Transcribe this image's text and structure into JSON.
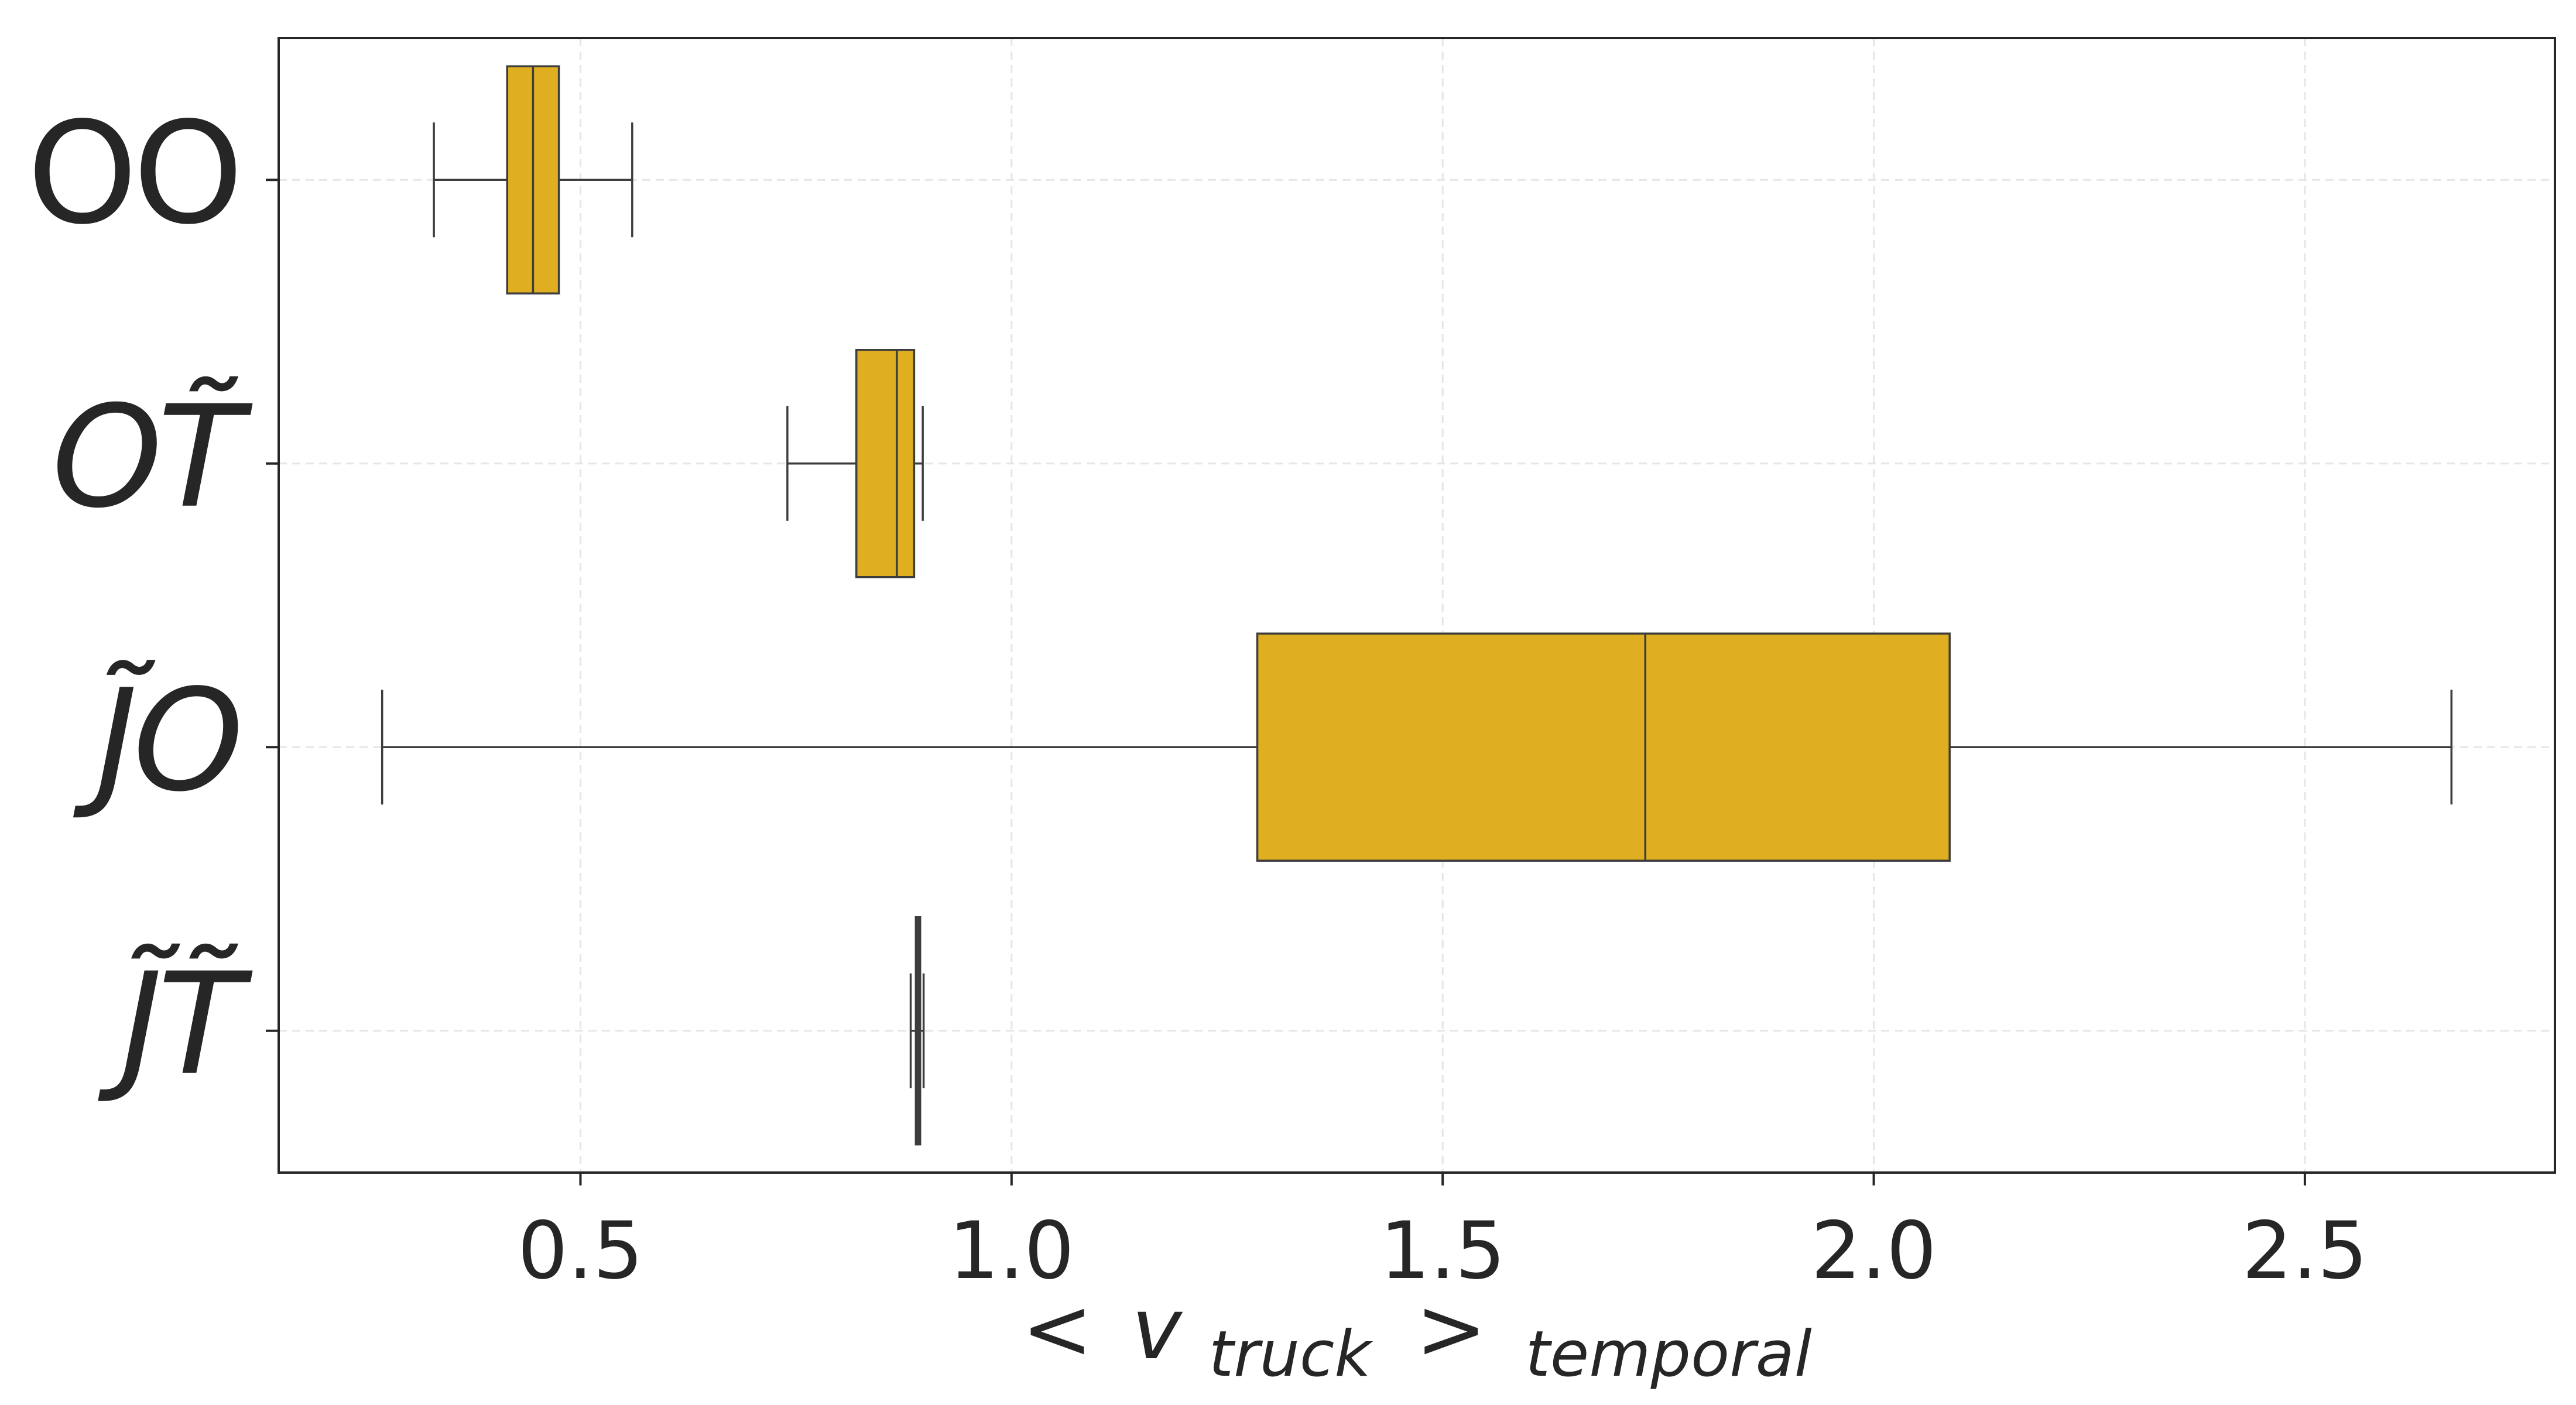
{
  "chart_data": {
    "type": "box",
    "orientation": "horizontal",
    "title": "",
    "xlabel": {
      "lt": "<",
      "gt": ">",
      "var": "v",
      "sub": "truck",
      "outer_sub": "temporal"
    },
    "ylabel": "",
    "xlim": [
      0.15,
      2.79
    ],
    "xticks": [
      0.5,
      1.0,
      1.5,
      2.0,
      2.5
    ],
    "xtick_labels": [
      "0.5",
      "1.0",
      "1.5",
      "2.0",
      "2.5"
    ],
    "grid": true,
    "categories": [
      {
        "letter1": "O",
        "tilde1": false,
        "italic1": false,
        "letter2": "O",
        "tilde2": false,
        "italic2": false
      },
      {
        "letter1": "O",
        "tilde1": false,
        "italic1": true,
        "letter2": "T",
        "tilde2": true,
        "italic2": true
      },
      {
        "letter1": "J",
        "tilde1": true,
        "italic1": true,
        "letter2": "O",
        "tilde2": false,
        "italic2": true
      },
      {
        "letter1": "J",
        "tilde1": true,
        "italic1": true,
        "letter2": "T",
        "tilde2": true,
        "italic2": true
      }
    ],
    "boxes": [
      {
        "whisker_low": 0.33,
        "q1": 0.415,
        "median": 0.445,
        "q3": 0.475,
        "whisker_high": 0.56
      },
      {
        "whisker_low": 0.74,
        "q1": 0.82,
        "median": 0.867,
        "q3": 0.887,
        "whisker_high": 0.897
      },
      {
        "whisker_low": 0.27,
        "q1": 1.285,
        "median": 1.735,
        "q3": 2.088,
        "whisker_high": 2.67
      },
      {
        "whisker_low": 0.883,
        "q1": 0.889,
        "median": 0.892,
        "q3": 0.894,
        "whisker_high": 0.898
      }
    ],
    "colors": {
      "box_fill": "#DFAF21",
      "box_edge": "#3d3d3d",
      "grid": "#e6e6e6",
      "text": "#262626"
    }
  }
}
